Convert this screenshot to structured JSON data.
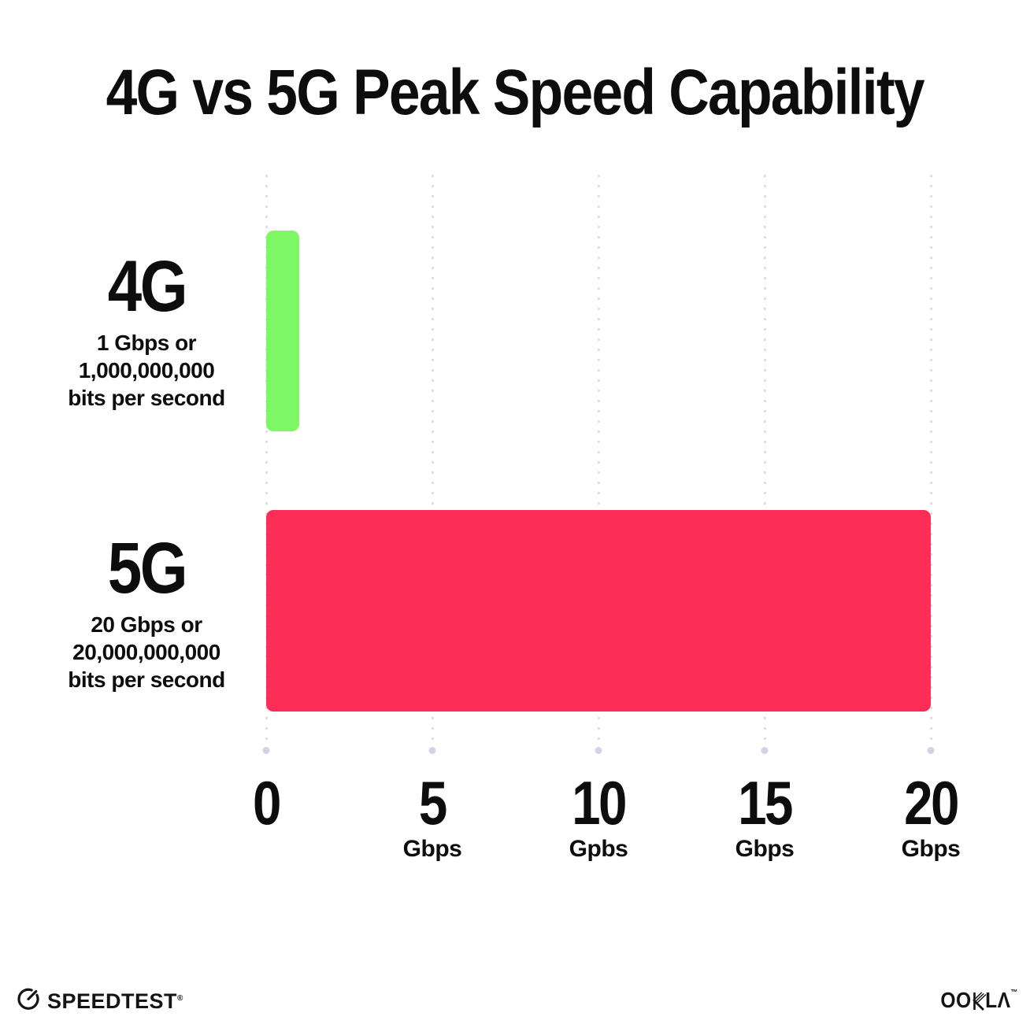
{
  "title": "4G vs 5G Peak Speed Capability",
  "chart_data": {
    "type": "bar",
    "orientation": "horizontal",
    "title": "4G vs 5G Peak Speed Capability",
    "categories": [
      "4G",
      "5G"
    ],
    "values": [
      1,
      20
    ],
    "value_unit": "Gbps",
    "xlim": [
      0,
      20
    ],
    "grid": "vertical-dotted",
    "legend": "none",
    "bar_colors": [
      "#7df763",
      "#fc2d57"
    ],
    "x_ticks": [
      {
        "value": 0,
        "label": "0",
        "unit": ""
      },
      {
        "value": 5,
        "label": "5",
        "unit": "Gbps"
      },
      {
        "value": 10,
        "label": "10",
        "unit": "Gpbs"
      },
      {
        "value": 15,
        "label": "15",
        "unit": "Gbps"
      },
      {
        "value": 20,
        "label": "20",
        "unit": "Gbps"
      }
    ]
  },
  "rows": [
    {
      "label": "4G",
      "sublines": [
        "1 Gbps or",
        "1,000,000,000",
        "bits per second"
      ],
      "value_gbps": 1
    },
    {
      "label": "5G",
      "sublines": [
        "20 Gbps or",
        "20,000,000,000",
        "bits per second"
      ],
      "value_gbps": 20
    }
  ],
  "footer": {
    "speedtest_label": "SPEEDTEST",
    "speedtest_mark": "®",
    "ookla_oo": "OO",
    "ookla_la": "LΛ",
    "ookla_mark": "™"
  },
  "colors": {
    "bar_4g": "#7df763",
    "bar_5g": "#fc2d57",
    "gridline": "#dcdeec",
    "text": "#0d0d0d",
    "background": "#ffffff"
  }
}
